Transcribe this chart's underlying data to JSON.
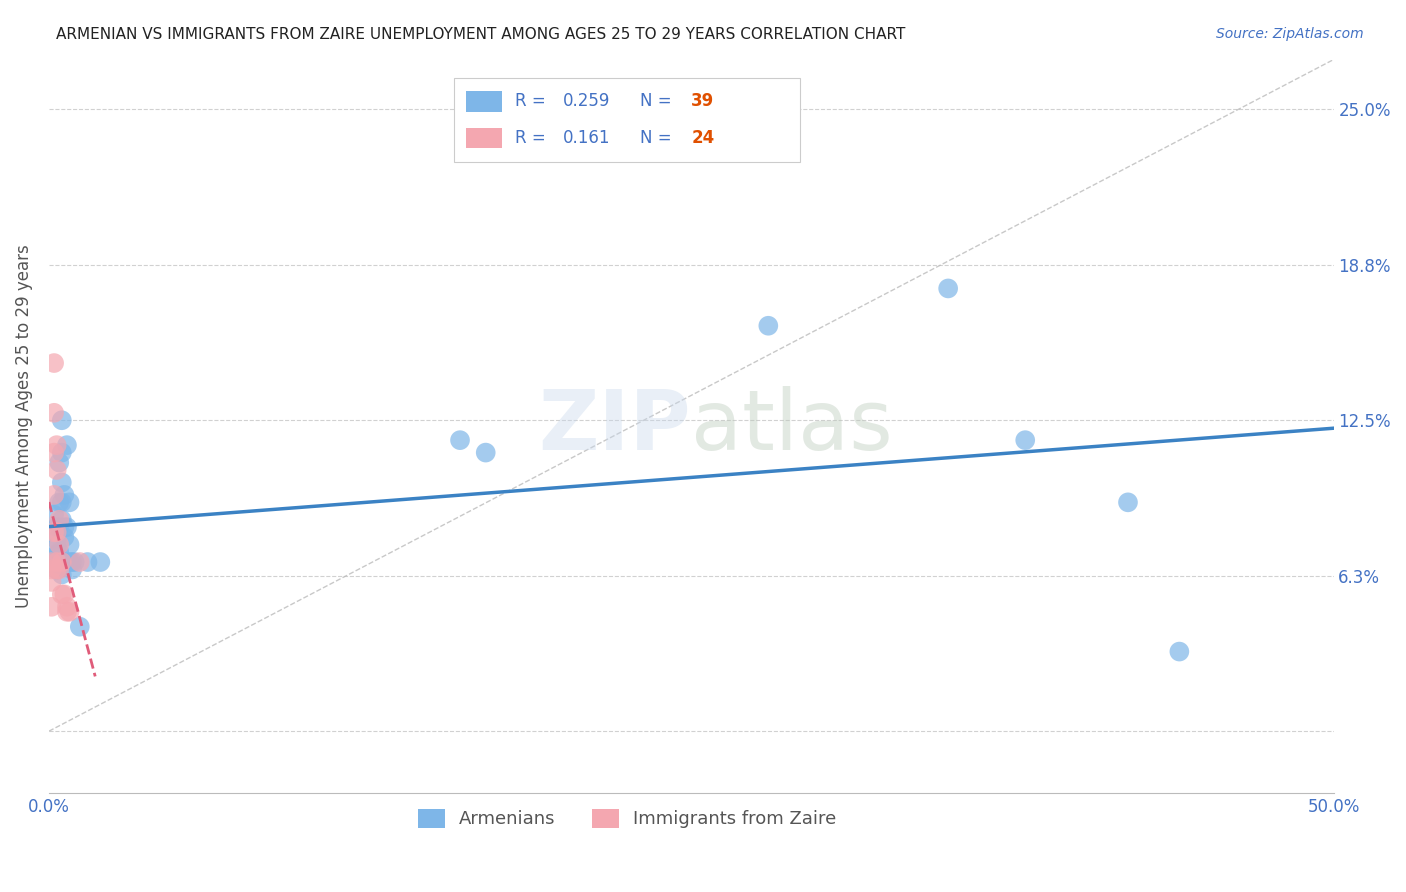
{
  "title": "ARMENIAN VS IMMIGRANTS FROM ZAIRE UNEMPLOYMENT AMONG AGES 25 TO 29 YEARS CORRELATION CHART",
  "source": "Source: ZipAtlas.com",
  "ylabel": "Unemployment Among Ages 25 to 29 years",
  "xlim": [
    0.0,
    0.5
  ],
  "ylim": [
    -0.025,
    0.27
  ],
  "yticks": [
    0.0,
    0.0625,
    0.125,
    0.1875,
    0.25
  ],
  "xticks": [
    0.0,
    0.1,
    0.2,
    0.3,
    0.4,
    0.5
  ],
  "xtick_labels": [
    "0.0%",
    "",
    "",
    "",
    "",
    "50.0%"
  ],
  "right_ytick_labels": [
    "25.0%",
    "18.8%",
    "12.5%",
    "6.3%"
  ],
  "right_ytick_vals": [
    0.25,
    0.1875,
    0.125,
    0.0625
  ],
  "legend1_R": "0.259",
  "legend1_N": "39",
  "legend2_R": "0.161",
  "legend2_N": "24",
  "armenian_color": "#7EB6E8",
  "zaire_color": "#F4A7B0",
  "armenian_trend_color": "#3B82C4",
  "zaire_trend_color": "#E05C7A",
  "background_color": "#FFFFFF",
  "grid_color": "#CCCCCC",
  "armenian_x": [
    0.002,
    0.003,
    0.003,
    0.003,
    0.003,
    0.003,
    0.003,
    0.003,
    0.004,
    0.004,
    0.004,
    0.004,
    0.005,
    0.005,
    0.005,
    0.005,
    0.005,
    0.005,
    0.006,
    0.006,
    0.006,
    0.007,
    0.007,
    0.008,
    0.008,
    0.008,
    0.009,
    0.009,
    0.01,
    0.012,
    0.015,
    0.02,
    0.16,
    0.17,
    0.28,
    0.35,
    0.38,
    0.42,
    0.44
  ],
  "armenian_y": [
    0.087,
    0.082,
    0.077,
    0.074,
    0.071,
    0.068,
    0.065,
    0.065,
    0.108,
    0.092,
    0.082,
    0.072,
    0.125,
    0.112,
    0.1,
    0.092,
    0.085,
    0.063,
    0.095,
    0.082,
    0.078,
    0.115,
    0.082,
    0.092,
    0.075,
    0.068,
    0.068,
    0.065,
    0.068,
    0.042,
    0.068,
    0.068,
    0.117,
    0.112,
    0.163,
    0.178,
    0.117,
    0.092,
    0.032
  ],
  "zaire_x": [
    0.001,
    0.001,
    0.001,
    0.001,
    0.002,
    0.002,
    0.002,
    0.002,
    0.002,
    0.003,
    0.003,
    0.003,
    0.003,
    0.003,
    0.004,
    0.004,
    0.004,
    0.005,
    0.005,
    0.006,
    0.007,
    0.007,
    0.008,
    0.012
  ],
  "zaire_y": [
    0.068,
    0.065,
    0.06,
    0.05,
    0.148,
    0.128,
    0.112,
    0.095,
    0.08,
    0.115,
    0.105,
    0.08,
    0.068,
    0.065,
    0.085,
    0.075,
    0.065,
    0.068,
    0.055,
    0.055,
    0.05,
    0.048,
    0.048,
    0.068
  ]
}
